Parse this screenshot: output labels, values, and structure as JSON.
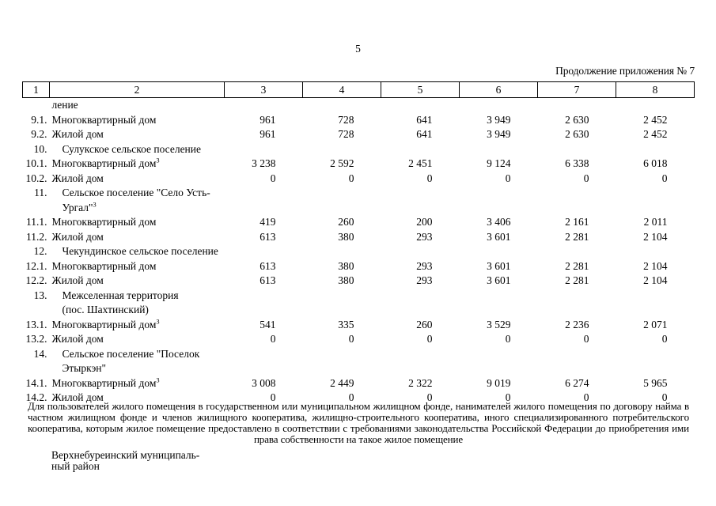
{
  "page": {
    "page_number": "5",
    "continuation_label": "Продолжение приложения № 7"
  },
  "table": {
    "header_cols": [
      "1",
      "2",
      "3",
      "4",
      "5",
      "6",
      "7",
      "8"
    ],
    "rows": [
      {
        "num": "",
        "label": "ление",
        "section": false,
        "values": [
          "",
          "",
          "",
          "",
          "",
          ""
        ]
      },
      {
        "num": "9.1.",
        "label": "Многоквартирный дом",
        "section": false,
        "values": [
          "961",
          "728",
          "641",
          "3 949",
          "2 630",
          "2 452"
        ]
      },
      {
        "num": "9.2.",
        "label": "Жилой дом",
        "section": false,
        "values": [
          "961",
          "728",
          "641",
          "3 949",
          "2 630",
          "2 452"
        ]
      },
      {
        "num": "10.",
        "label": "Сулукское сельское поселение",
        "section": true,
        "values": [
          "",
          "",
          "",
          "",
          "",
          ""
        ]
      },
      {
        "num": "10.1.",
        "label": "Многоквартирный дом",
        "sup": "3",
        "section": false,
        "values": [
          "3 238",
          "2 592",
          "2 451",
          "9 124",
          "6 338",
          "6 018"
        ]
      },
      {
        "num": "10.2.",
        "label": "Жилой дом",
        "section": false,
        "values": [
          "0",
          "0",
          "0",
          "0",
          "0",
          "0"
        ]
      },
      {
        "num": "11.",
        "label": "Сельское поселение \"Село Усть-\nУргал\"",
        "sup": "3",
        "section": true,
        "values": [
          "",
          "",
          "",
          "",
          "",
          ""
        ]
      },
      {
        "num": "11.1.",
        "label": "Многоквартирный дом",
        "section": false,
        "values": [
          "419",
          "260",
          "200",
          "3 406",
          "2 161",
          "2 011"
        ]
      },
      {
        "num": "11.2.",
        "label": "Жилой дом",
        "section": false,
        "values": [
          "613",
          "380",
          "293",
          "3 601",
          "2 281",
          "2 104"
        ]
      },
      {
        "num": "12.",
        "label": "Чекундинское сельское поселение",
        "section": true,
        "values": [
          "",
          "",
          "",
          "",
          "",
          ""
        ]
      },
      {
        "num": "12.1.",
        "label": "Многоквартирный дом",
        "section": false,
        "values": [
          "613",
          "380",
          "293",
          "3 601",
          "2 281",
          "2 104"
        ]
      },
      {
        "num": "12.2.",
        "label": "Жилой дом",
        "section": false,
        "values": [
          "613",
          "380",
          "293",
          "3 601",
          "2 281",
          "2 104"
        ]
      },
      {
        "num": "13.",
        "label": "Межселенная территория\n(пос. Шахтинский)",
        "section": true,
        "values": [
          "",
          "",
          "",
          "",
          "",
          ""
        ]
      },
      {
        "num": "13.1.",
        "label": "Многоквартирный дом",
        "sup": "3",
        "section": false,
        "values": [
          "541",
          "335",
          "260",
          "3 529",
          "2 236",
          "2 071"
        ]
      },
      {
        "num": "13.2.",
        "label": "Жилой дом",
        "section": false,
        "values": [
          "0",
          "0",
          "0",
          "0",
          "0",
          "0"
        ]
      },
      {
        "num": "14.",
        "label": "Сельское поселение \"Поселок\nЭтыркэн\"",
        "section": true,
        "values": [
          "",
          "",
          "",
          "",
          "",
          ""
        ]
      },
      {
        "num": "14.1.",
        "label": "Многоквартирный дом",
        "sup": "3",
        "section": false,
        "values": [
          "3 008",
          "2 449",
          "2 322",
          "9 019",
          "6 274",
          "5 965"
        ]
      },
      {
        "num": "14.2.",
        "label": "Жилой дом",
        "section": false,
        "values": [
          "0",
          "0",
          "0",
          "0",
          "0",
          "0"
        ]
      }
    ]
  },
  "footnote": "Для пользователей жилого помещения в государственном или муниципальном жилищном фонде, нанимателей жилого помещения по договору найма в частном жилищном фонде и членов жилищного кооператива, жилищно-строительного кооператива, иного специализированного потребительского кооператива, которым жилое помещение предоставлено в соответствии с требованиями законодательства Российской Федерации до приобретения ими права собственности на такое жилое помещение",
  "district": "Верхнебуреинский муниципаль-\nный район"
}
